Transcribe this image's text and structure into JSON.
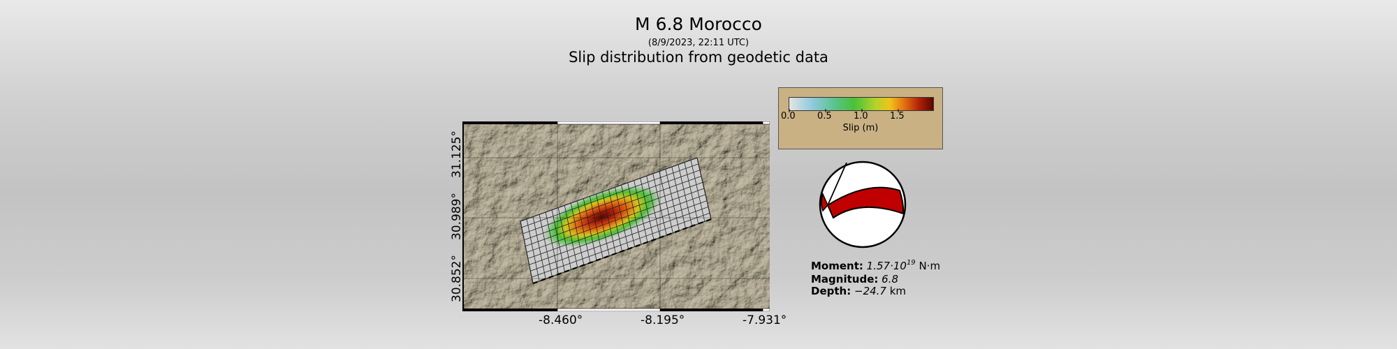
{
  "header": {
    "title": "M 6.8 Morocco",
    "date": "(8/9/2023, 22:11 UTC)",
    "subtitle": "Slip distribution from geodetic data"
  },
  "map": {
    "x_ticks": [
      "-8.460°",
      "-8.195°",
      "-7.931°"
    ],
    "y_ticks": [
      "31.125°",
      "30.989°",
      "30.852°"
    ]
  },
  "colorbar": {
    "ticks": [
      "0.0",
      "0.5",
      "1.0",
      "1.5"
    ],
    "label": "Slip (m)",
    "range": [
      0,
      2.0
    ],
    "colors": [
      "#e4e4e4",
      "#8fc9de",
      "#49c03a",
      "#f1c21a",
      "#e46f12",
      "#b2220a",
      "#5a0600"
    ]
  },
  "focal_mechanism": {
    "fill_color": "#c00000"
  },
  "info": {
    "moment_label": "Moment:",
    "moment_value": "1.57·10",
    "moment_exp": "19",
    "moment_unit": "N·m",
    "magnitude_label": "Magnitude:",
    "magnitude_value": "6.8",
    "depth_label": "Depth:",
    "depth_value": "−24.7",
    "depth_unit": "km"
  }
}
